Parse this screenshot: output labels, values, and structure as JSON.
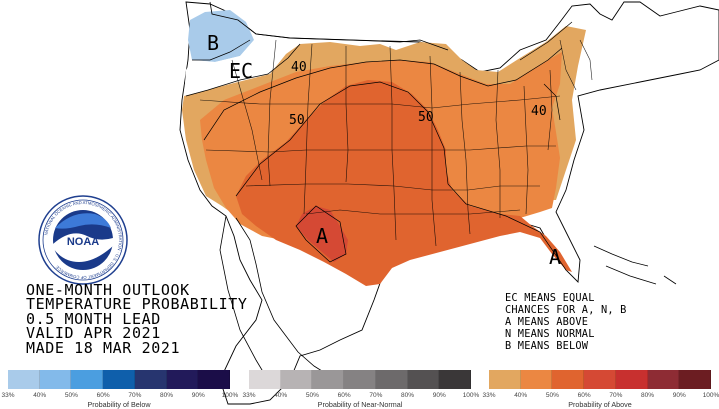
{
  "map": {
    "contour_labels": [
      "40",
      "50",
      "50",
      "40"
    ],
    "category_labels": [
      "B",
      "EC",
      "A",
      "A"
    ],
    "seal_text": "NOAA",
    "seal_ring_text": "NATIONAL OCEANIC AND ATMOSPHERIC ADMINISTRATION · U.S. DEPARTMENT OF COMMERCE"
  },
  "title_lines": [
    "ONE-MONTH OUTLOOK",
    "TEMPERATURE PROBABILITY",
    "0.5 MONTH LEAD",
    "VALID APR 2021",
    "MADE 18 MAR 2021"
  ],
  "legend_lines": [
    "EC MEANS EQUAL",
    "CHANCES FOR A, N, B",
    "A MEANS ABOVE",
    "N MEANS NORMAL",
    "B MEANS BELOW"
  ],
  "scales": [
    {
      "title": "Probability of Below",
      "ticks": [
        "33%",
        "40%",
        "50%",
        "60%",
        "70%",
        "80%",
        "90%",
        "100%"
      ],
      "colors": [
        "#a9cbea",
        "#83baea",
        "#4b9ee0",
        "#0f5fab",
        "#27356f",
        "#221a5a",
        "#1b0d48"
      ]
    },
    {
      "title": "Probability of Near-Normal",
      "ticks": [
        "33%",
        "40%",
        "50%",
        "60%",
        "70%",
        "80%",
        "90%",
        "100%"
      ],
      "colors": [
        "#dcd8d9",
        "#b7b3b4",
        "#9a9798",
        "#858283",
        "#6d6a6b",
        "#545152",
        "#3a3738"
      ]
    },
    {
      "title": "Probability of Above",
      "ticks": [
        "33%",
        "40%",
        "50%",
        "60%",
        "70%",
        "80%",
        "90%",
        "100%"
      ],
      "colors": [
        "#e2a760",
        "#eb8742",
        "#e0642f",
        "#d54934",
        "#c8302f",
        "#8e2c34",
        "#6c1d22"
      ]
    }
  ]
}
